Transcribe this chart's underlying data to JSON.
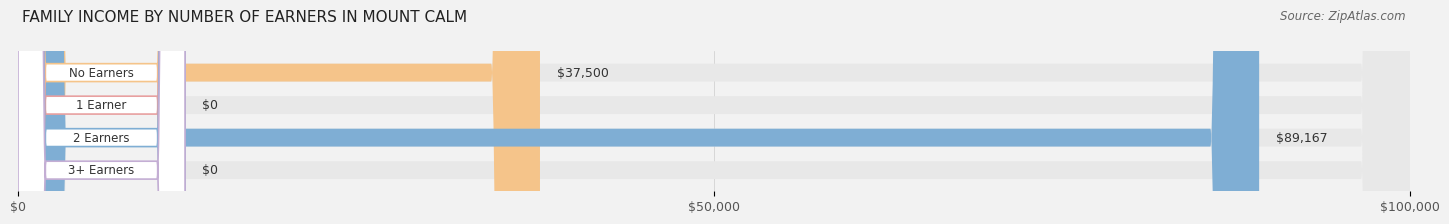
{
  "title": "FAMILY INCOME BY NUMBER OF EARNERS IN MOUNT CALM",
  "source": "Source: ZipAtlas.com",
  "categories": [
    "No Earners",
    "1 Earner",
    "2 Earners",
    "3+ Earners"
  ],
  "values": [
    37500,
    0,
    89167,
    0
  ],
  "bar_colors": [
    "#f5c48a",
    "#e8a0a0",
    "#7faed4",
    "#c4aed4"
  ],
  "bar_bg_color": "#e8e8e8",
  "value_labels": [
    "$37,500",
    "$0",
    "$89,167",
    "$0"
  ],
  "xlim": [
    0,
    100000
  ],
  "xticks": [
    0,
    50000,
    100000
  ],
  "xtick_labels": [
    "$0",
    "$50,000",
    "$100,000"
  ],
  "bar_height": 0.55,
  "title_fontsize": 11,
  "tick_fontsize": 9,
  "annotation_fontsize": 9,
  "source_fontsize": 8.5,
  "fig_bg_color": "#f2f2f2"
}
